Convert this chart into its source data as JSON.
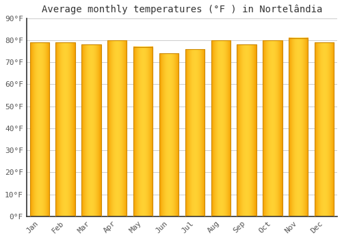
{
  "months": [
    "Jan",
    "Feb",
    "Mar",
    "Apr",
    "May",
    "Jun",
    "Jul",
    "Aug",
    "Sep",
    "Oct",
    "Nov",
    "Dec"
  ],
  "values": [
    79,
    79,
    78,
    80,
    77,
    74,
    76,
    80,
    78,
    80,
    81,
    79
  ],
  "bar_color_top": "#FFAA00",
  "bar_color_bottom": "#FFB833",
  "bar_edge_color": "#CC8800",
  "title": "Average monthly temperatures (°F ) in Nortelândia",
  "ylim": [
    0,
    90
  ],
  "yticks": [
    0,
    10,
    20,
    30,
    40,
    50,
    60,
    70,
    80,
    90
  ],
  "ytick_labels": [
    "0°F",
    "10°F",
    "20°F",
    "30°F",
    "40°F",
    "50°F",
    "60°F",
    "70°F",
    "80°F",
    "90°F"
  ],
  "bg_color": "#FFFFFF",
  "grid_color": "#CCCCCC",
  "title_fontsize": 10,
  "tick_fontsize": 8,
  "bar_width": 0.75,
  "spine_color": "#333333",
  "tick_color": "#555555"
}
